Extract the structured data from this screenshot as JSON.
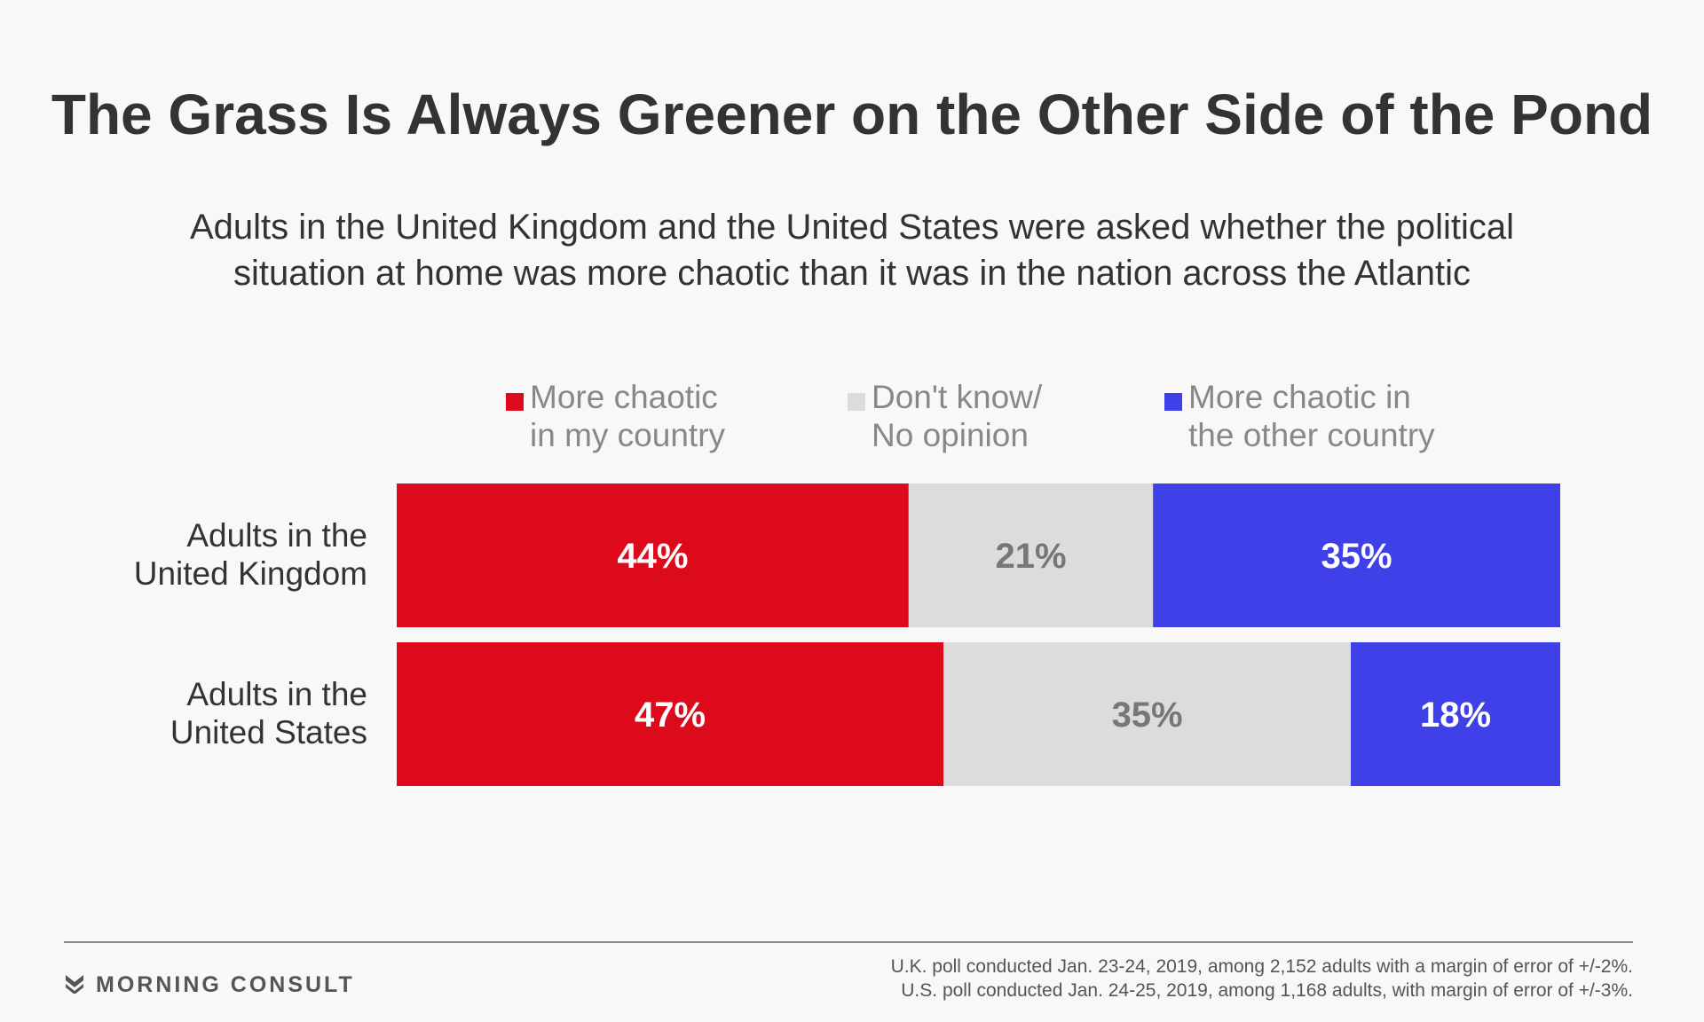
{
  "title": "The Grass Is Always Greener on the Other Side of the Pond",
  "subtitle": {
    "line1": "Adults in the United Kingdom and the United States were asked whether the political",
    "line2": "situation at home was more chaotic than it was in the nation across the Atlantic"
  },
  "legend": [
    {
      "line1": "More chaotic",
      "line2": "in my country",
      "color": "#dd0a1b"
    },
    {
      "line1": "Don't know/",
      "line2": "No opinion",
      "color": "#dcdcdc"
    },
    {
      "line1": "More chaotic in",
      "line2": "the other country",
      "color": "#4040e8"
    }
  ],
  "rows": [
    {
      "line1": "Adults in the",
      "line2": "United Kingdom"
    },
    {
      "line1": "Adults in the",
      "line2": "United States"
    }
  ],
  "chart_data": {
    "type": "bar",
    "orientation": "horizontal",
    "stacked": true,
    "normalized": true,
    "categories": [
      "Adults in the United Kingdom",
      "Adults in the United States"
    ],
    "series": [
      {
        "name": "More chaotic in my country",
        "values": [
          44,
          47
        ],
        "labels": [
          "44%",
          "47%"
        ],
        "color": "#dd0a1b",
        "label_color": "#ffffff"
      },
      {
        "name": "Don't know/ No opinion",
        "values": [
          21,
          35
        ],
        "labels": [
          "21%",
          "35%"
        ],
        "color": "#dcdcdc",
        "label_color": "#777777"
      },
      {
        "name": "More chaotic in the other country",
        "values": [
          35,
          18
        ],
        "labels": [
          "35%",
          "18%"
        ],
        "color": "#4040e8",
        "label_color": "#ffffff"
      }
    ],
    "xlim": [
      0,
      100
    ],
    "grid": false,
    "legend_position": "top"
  },
  "footer": {
    "logo": "MORNING CONSULT",
    "note1": "U.K. poll conducted Jan. 23-24, 2019, among 2,152 adults with a margin of error of +/-2%.",
    "note2": "U.S. poll conducted Jan. 24-25, 2019, among 1,168 adults, with margin of error of +/-3%."
  }
}
